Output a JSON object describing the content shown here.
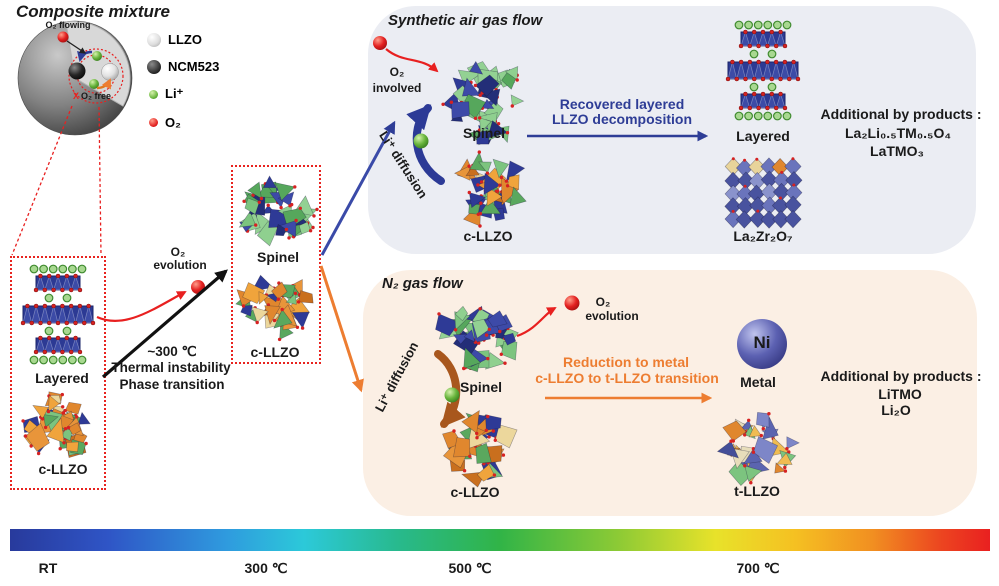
{
  "colors": {
    "blue_accent": "#2e3d96",
    "orange_accent": "#ed7d31",
    "red_accent": "#e8231f",
    "li_green": "#66b33a",
    "air_panel_bg": "#ebedf3",
    "n2_panel_bg": "#fbefe4",
    "navy_structure": "#2c3a94",
    "orange_structure": "#e0872e",
    "green_structure": "#7cc47f"
  },
  "composite": {
    "title": "Composite mixture",
    "o2_flowing": "O₂ flowing",
    "o2_free_x": "X",
    "o2_free": "O₂ free"
  },
  "legend": {
    "items": [
      {
        "icon": "llzo-sphere",
        "label": "LLZO"
      },
      {
        "icon": "ncm523-sphere",
        "label": "NCM523"
      },
      {
        "icon": "li-ion-sphere",
        "label": "Li⁺"
      },
      {
        "icon": "o2-sphere",
        "label": "O₂"
      }
    ]
  },
  "left_box": {
    "layered_label": "Layered",
    "cllzo_label": "c-LLZO"
  },
  "transition": {
    "o2": "O₂",
    "evolution": "evolution",
    "temp": "~300 ℃",
    "instability": "Thermal instability",
    "phase": "Phase transition"
  },
  "middle_box": {
    "spinel_label": "Spinel",
    "cllzo_label": "c-LLZO"
  },
  "air_panel": {
    "title": "Synthetic air gas flow",
    "o2": "O₂",
    "involved": "involved",
    "li_diffusion": "Li⁺ diffusion",
    "spinel_label": "Spinel",
    "cllzo_label": "c-LLZO",
    "process_line1": "Recovered layered",
    "process_line2": "LLZO decomposition",
    "layered_label": "Layered",
    "lzo_label": "La₂Zr₂O₇",
    "byproducts_title": "Additional by products :",
    "byproduct1": "La₂Li₀.₅TM₀.₅O₄",
    "byproduct2": "LaTMO₃"
  },
  "n2_panel": {
    "title": "N₂ gas flow",
    "o2": "O₂",
    "evolution": "evolution",
    "li_diffusion": "Li⁺ diffusion",
    "spinel_label": "Spinel",
    "cllzo_label": "c-LLZO",
    "process_line1": "Reduction to metal",
    "process_line2": "c-LLZO to t-LLZO transition",
    "ni_label": "Ni",
    "metal_label": "Metal",
    "tllzo_label": "t-LLZO",
    "byproducts_title": "Additional by products :",
    "byproduct1": "LiTMO",
    "byproduct2": "Li₂O"
  },
  "temperature_scale": {
    "labels": [
      "RT",
      "300 ℃",
      "500 ℃",
      "700 ℃"
    ]
  }
}
